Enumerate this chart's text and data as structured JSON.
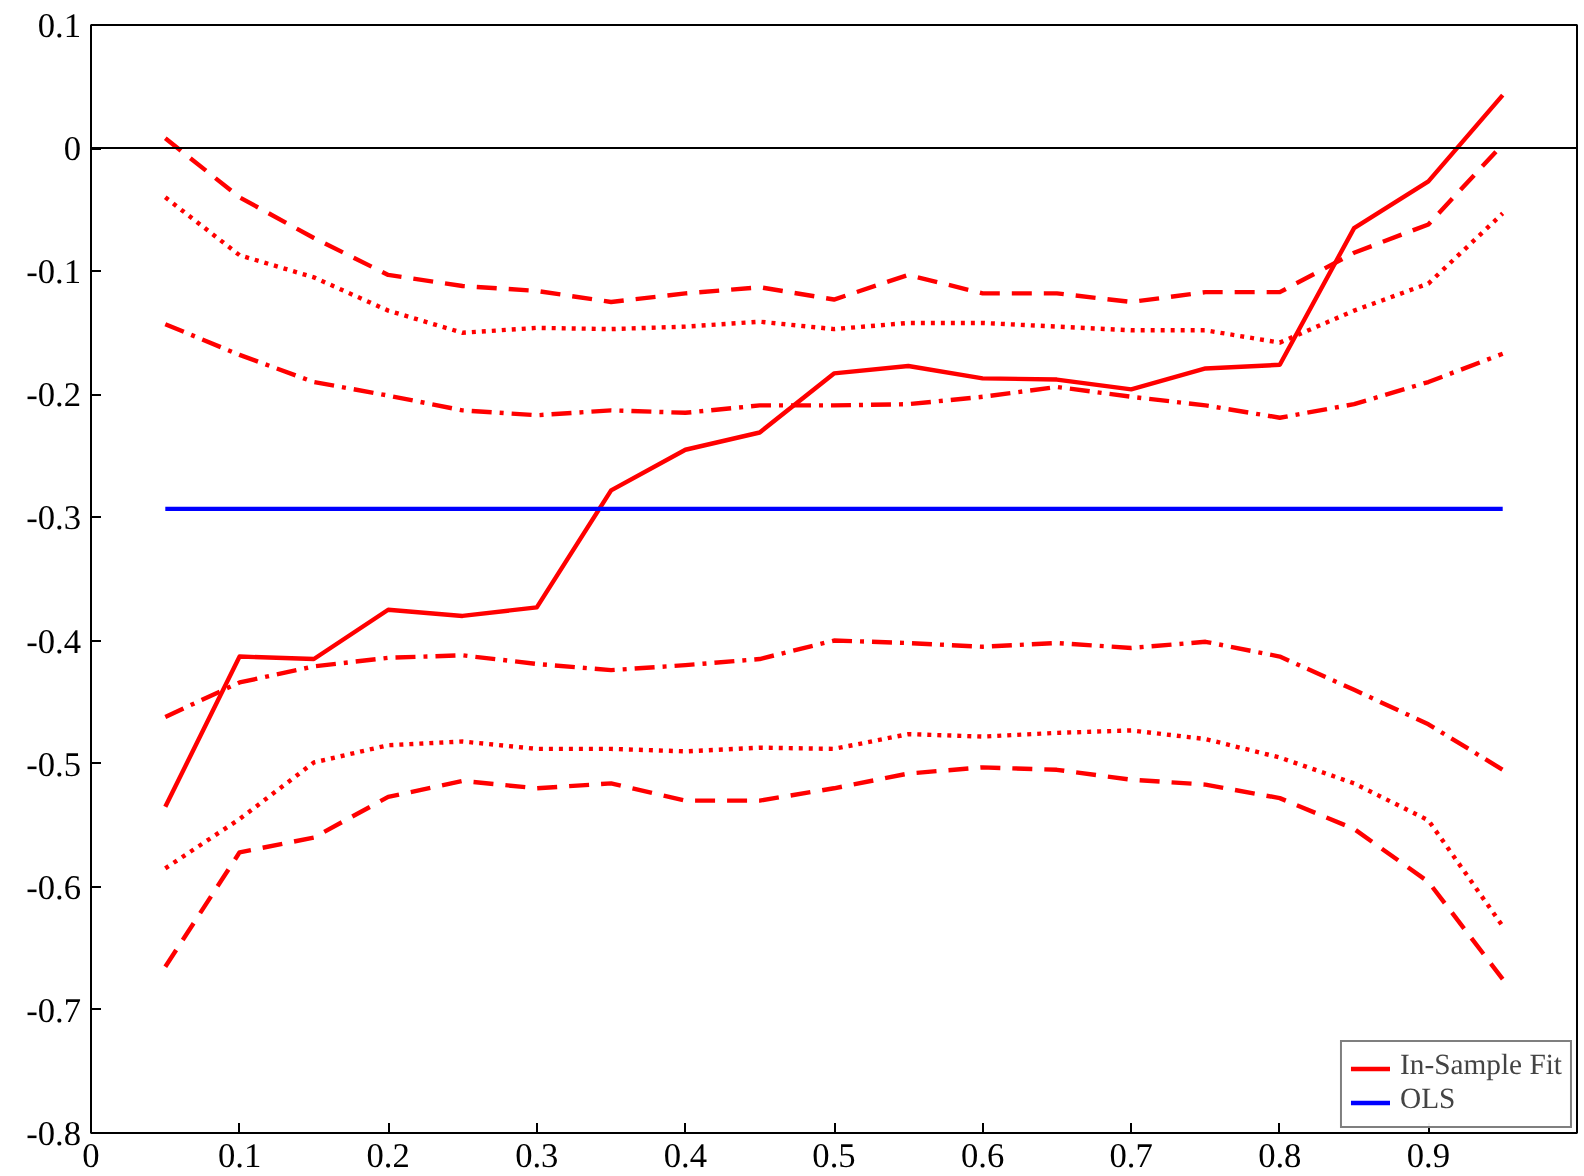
{
  "chart_data": {
    "type": "line",
    "x": [
      0.05,
      0.1,
      0.15,
      0.2,
      0.25,
      0.3,
      0.35,
      0.4,
      0.45,
      0.5,
      0.55,
      0.6,
      0.65,
      0.7,
      0.75,
      0.8,
      0.85,
      0.9,
      0.95
    ],
    "series": [
      {
        "name": "In-Sample Fit",
        "color": "#ff0000",
        "line_style": "solid",
        "values": [
          -0.535,
          -0.413,
          -0.415,
          -0.375,
          -0.38,
          -0.373,
          -0.278,
          -0.245,
          -0.231,
          -0.183,
          -0.177,
          -0.187,
          -0.188,
          -0.196,
          -0.179,
          -0.176,
          -0.065,
          -0.027,
          0.043
        ]
      },
      {
        "color": "#ff0000",
        "line_style": "dashed",
        "values": [
          0.008,
          -0.04,
          -0.073,
          -0.103,
          -0.112,
          -0.116,
          -0.125,
          -0.118,
          -0.113,
          -0.123,
          -0.103,
          -0.118,
          -0.118,
          -0.125,
          -0.117,
          -0.117,
          -0.085,
          -0.062,
          0.003
        ]
      },
      {
        "color": "#ff0000",
        "line_style": "dotted",
        "values": [
          -0.04,
          -0.087,
          -0.105,
          -0.132,
          -0.15,
          -0.146,
          -0.147,
          -0.145,
          -0.141,
          -0.147,
          -0.142,
          -0.142,
          -0.145,
          -0.148,
          -0.148,
          -0.158,
          -0.132,
          -0.11,
          -0.053
        ]
      },
      {
        "color": "#ff0000",
        "line_style": "dashdot",
        "values": [
          -0.143,
          -0.168,
          -0.19,
          -0.201,
          -0.213,
          -0.217,
          -0.213,
          -0.215,
          -0.209,
          -0.209,
          -0.208,
          -0.202,
          -0.194,
          -0.202,
          -0.209,
          -0.219,
          -0.208,
          -0.19,
          -0.167
        ]
      },
      {
        "color": "#ff0000",
        "line_style": "dashdot",
        "values": [
          -0.462,
          -0.434,
          -0.421,
          -0.414,
          -0.412,
          -0.419,
          -0.424,
          -0.42,
          -0.415,
          -0.4,
          -0.402,
          -0.405,
          -0.402,
          -0.406,
          -0.401,
          -0.413,
          -0.44,
          -0.468,
          -0.505
        ]
      },
      {
        "color": "#ff0000",
        "line_style": "dotted",
        "values": [
          -0.585,
          -0.545,
          -0.499,
          -0.485,
          -0.482,
          -0.488,
          -0.488,
          -0.49,
          -0.487,
          -0.488,
          -0.476,
          -0.478,
          -0.475,
          -0.473,
          -0.48,
          -0.495,
          -0.516,
          -0.546,
          -0.632
        ]
      },
      {
        "color": "#ff0000",
        "line_style": "dashed",
        "values": [
          -0.665,
          -0.572,
          -0.56,
          -0.527,
          -0.514,
          -0.52,
          -0.516,
          -0.53,
          -0.53,
          -0.52,
          -0.508,
          -0.503,
          -0.505,
          -0.513,
          -0.517,
          -0.528,
          -0.553,
          -0.596,
          -0.675
        ]
      },
      {
        "name": "OLS",
        "color": "#0000ff",
        "line_style": "solid",
        "values": [
          -0.293,
          -0.293,
          -0.293,
          -0.293,
          -0.293,
          -0.293,
          -0.293,
          -0.293,
          -0.293,
          -0.293,
          -0.293,
          -0.293,
          -0.293,
          -0.293,
          -0.293,
          -0.293,
          -0.293,
          -0.293,
          -0.293
        ]
      }
    ],
    "xlim": [
      0,
      1
    ],
    "xticks": [
      0,
      0.1,
      0.2,
      0.3,
      0.4,
      0.5,
      0.6,
      0.7,
      0.8,
      0.9
    ],
    "ylim": [
      -0.8,
      0.1
    ],
    "yticks": [
      -0.8,
      -0.7,
      -0.6,
      -0.5,
      -0.4,
      -0.3,
      -0.2,
      -0.1,
      0,
      0.1
    ],
    "ref_lines": [
      {
        "axis": "y",
        "value": 0,
        "color": "#000000"
      }
    ],
    "grid": false,
    "legend": "bottom right",
    "marker": "none"
  }
}
